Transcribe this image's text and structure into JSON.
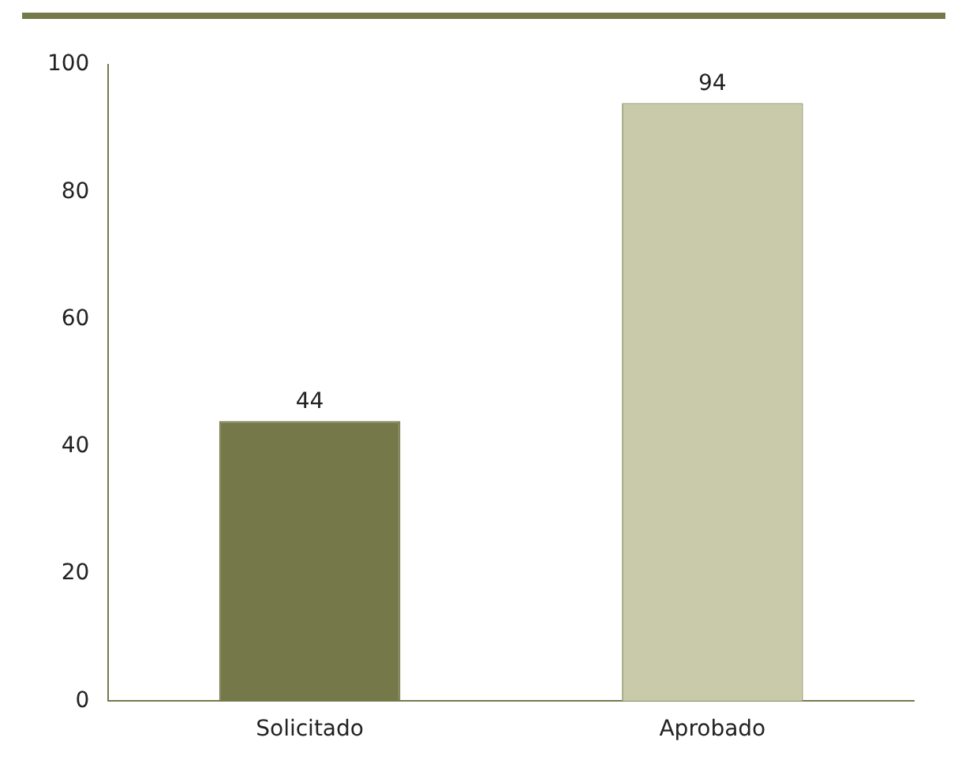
{
  "chart_data": {
    "type": "bar",
    "categories": [
      "Solicitado",
      "Aprobado"
    ],
    "values": [
      44,
      94
    ],
    "colors": [
      "#75794a",
      "#c8caa9"
    ],
    "ylim": [
      0,
      100
    ],
    "yticks": [
      0,
      20,
      40,
      60,
      80,
      100
    ],
    "grid": false,
    "data_labels": true
  }
}
